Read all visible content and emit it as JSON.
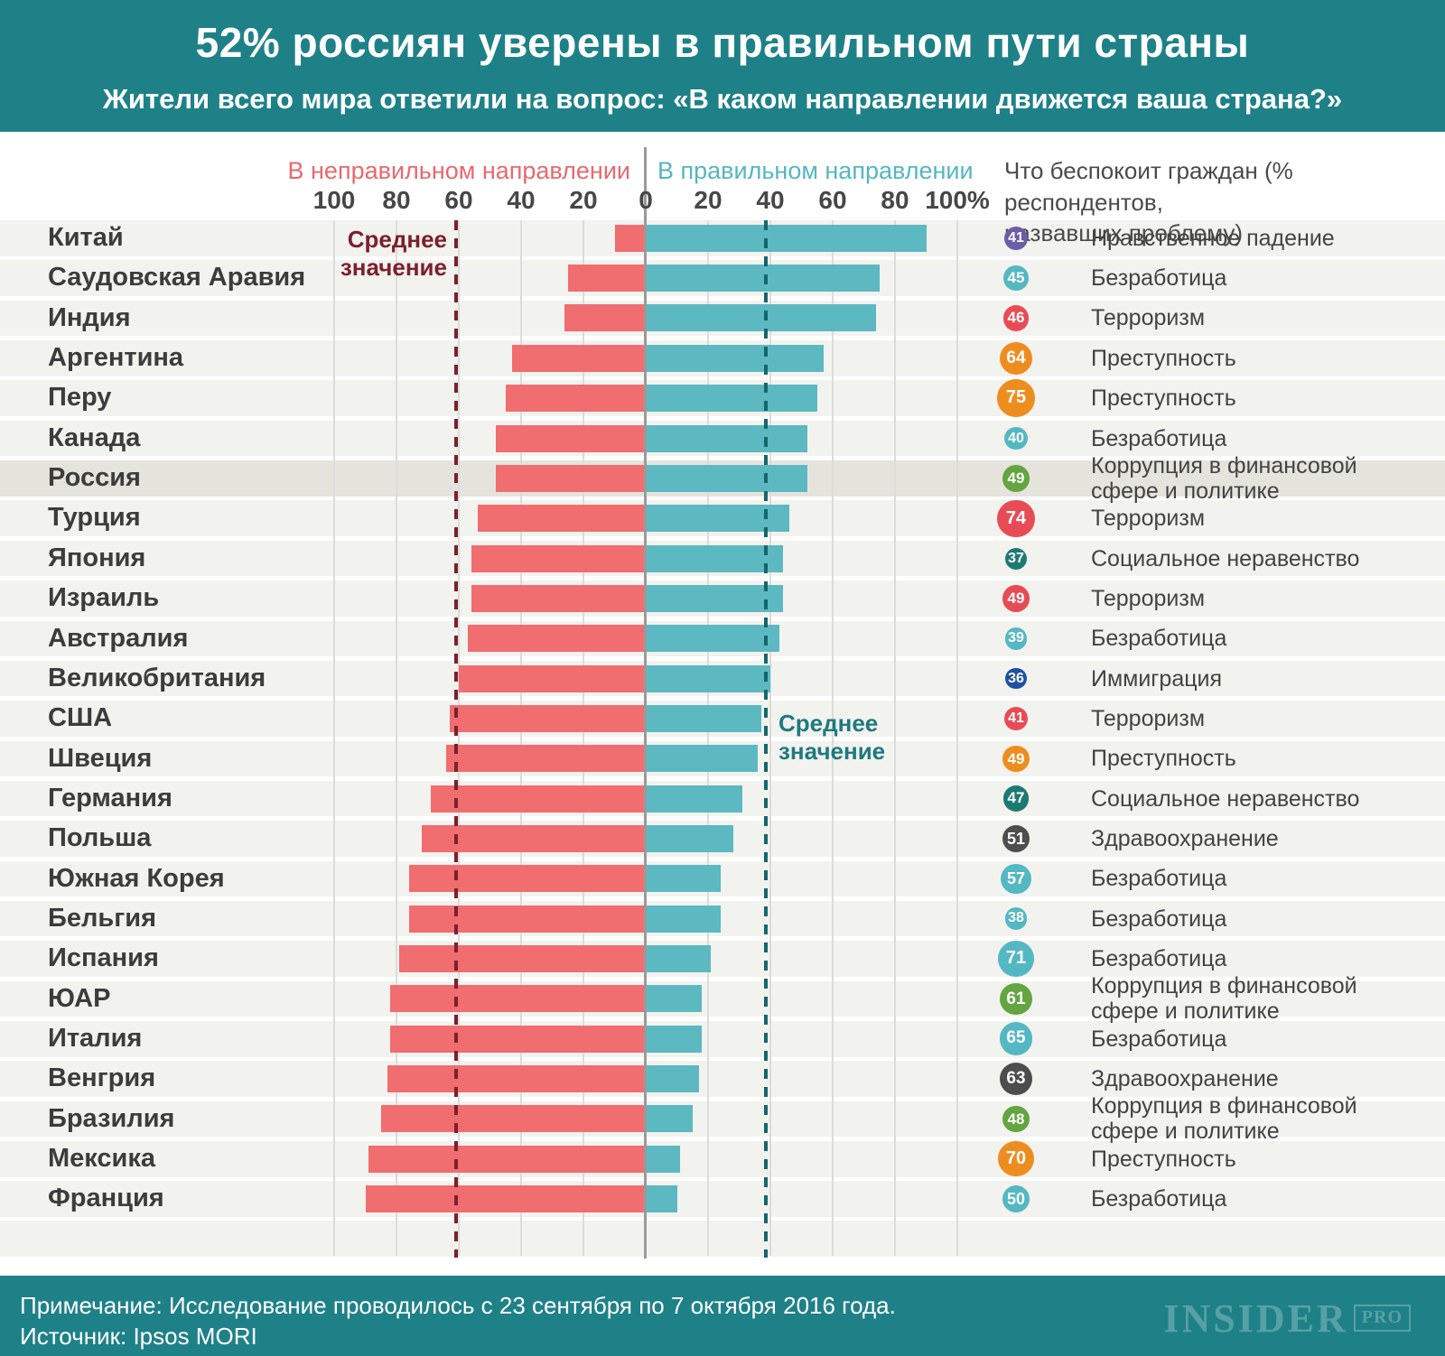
{
  "header": {
    "title": "52% россиян уверены в правильном пути страны",
    "subtitle": "Жители всего мира ответили на вопрос: «В каком направлении движется ваша страна?»"
  },
  "legend": {
    "wrong_label": "В неправильном направлении",
    "right_label": "В правильном направлении"
  },
  "axis": {
    "tick_labels": [
      "100",
      "80",
      "60",
      "40",
      "20",
      "0",
      "20",
      "40",
      "60",
      "80",
      "100%"
    ]
  },
  "right_column_header": "Что беспокоит граждан (% респондентов,\nназвавших проблему)",
  "avg_label_wrong": "Среднее\nзначение",
  "avg_label_right": "Среднее\nзначение",
  "chart_data": {
    "type": "bar",
    "orientation": "horizontal-diverging",
    "title": "52% россиян уверены в правильном пути страны",
    "unit": "%",
    "axis_range": [
      0,
      100
    ],
    "grid": true,
    "categories": [
      "Китай",
      "Саудовская Аравия",
      "Индия",
      "Аргентина",
      "Перу",
      "Канада",
      "Россия",
      "Турция",
      "Япония",
      "Израиль",
      "Австралия",
      "Великобритания",
      "США",
      "Швеция",
      "Германия",
      "Польша",
      "Южная Корея",
      "Бельгия",
      "Испания",
      "ЮАР",
      "Италия",
      "Венгрия",
      "Бразилия",
      "Мексика",
      "Франция"
    ],
    "series": [
      {
        "name": "В неправильном направлении",
        "color": "#f06d70",
        "values": [
          10,
          25,
          26,
          43,
          45,
          48,
          48,
          54,
          56,
          56,
          57,
          60,
          63,
          64,
          69,
          72,
          76,
          76,
          79,
          82,
          82,
          83,
          85,
          89,
          90
        ]
      },
      {
        "name": "В правильном направлении",
        "color": "#5cb9c2",
        "values": [
          90,
          75,
          74,
          57,
          55,
          52,
          52,
          46,
          44,
          44,
          43,
          40,
          37,
          36,
          31,
          28,
          24,
          24,
          21,
          18,
          18,
          17,
          15,
          11,
          10
        ]
      }
    ],
    "averages": {
      "wrong": 61,
      "right": 38.5
    },
    "highlight_category": "Россия",
    "concerns": [
      {
        "value": 41,
        "label": "Нравственное падение",
        "color": "#6b5ea6"
      },
      {
        "value": 45,
        "label": "Безработица",
        "color": "#54b8c3"
      },
      {
        "value": 46,
        "label": "Терроризм",
        "color": "#e74c56"
      },
      {
        "value": 64,
        "label": "Преступность",
        "color": "#ee8d1f"
      },
      {
        "value": 75,
        "label": "Преступность",
        "color": "#ee8d1f"
      },
      {
        "value": 40,
        "label": "Безработица",
        "color": "#54b8c3"
      },
      {
        "value": 49,
        "label": "Коррупция в финансовой сфере и политике",
        "color": "#64a441"
      },
      {
        "value": 74,
        "label": "Терроризм",
        "color": "#e74c56"
      },
      {
        "value": 37,
        "label": "Социальное неравенство",
        "color": "#1d7a72"
      },
      {
        "value": 49,
        "label": "Терроризм",
        "color": "#e74c56"
      },
      {
        "value": 39,
        "label": "Безработица",
        "color": "#54b8c3"
      },
      {
        "value": 36,
        "label": "Иммиграция",
        "color": "#1f50a4"
      },
      {
        "value": 41,
        "label": "Терроризм",
        "color": "#e74c56"
      },
      {
        "value": 49,
        "label": "Преступность",
        "color": "#ee8d1f"
      },
      {
        "value": 47,
        "label": "Социальное неравенство",
        "color": "#1d7a72"
      },
      {
        "value": 51,
        "label": "Здравоохранение",
        "color": "#4d4d4d"
      },
      {
        "value": 57,
        "label": "Безработица",
        "color": "#54b8c3"
      },
      {
        "value": 38,
        "label": "Безработица",
        "color": "#54b8c3"
      },
      {
        "value": 71,
        "label": "Безработица",
        "color": "#54b8c3"
      },
      {
        "value": 61,
        "label": "Коррупция в финансовой сфере и политике",
        "color": "#64a441"
      },
      {
        "value": 65,
        "label": "Безработица",
        "color": "#54b8c3"
      },
      {
        "value": 63,
        "label": "Здравоохранение",
        "color": "#4d4d4d"
      },
      {
        "value": 48,
        "label": "Коррупция в финансовой сфере и политике",
        "color": "#64a441"
      },
      {
        "value": 70,
        "label": "Преступность",
        "color": "#ee8d1f"
      },
      {
        "value": 50,
        "label": "Безработица",
        "color": "#54b8c3"
      }
    ]
  },
  "colors": {
    "header_bg": "#1f8188",
    "stripe": "#f2f2ef",
    "stripe_highlight": "#e4e4dd",
    "bar_wrong": "#f06d70",
    "bar_right": "#5cb9c2",
    "legend_wrong": "#e8696e",
    "legend_right": "#56b6c0",
    "avg_wrong_line": "#7c202d",
    "avg_right_line": "#15666c",
    "zero_line": "#9a9a9a",
    "gridline": "#dcdcda"
  },
  "footer": {
    "note": "Примечание: Исследование проводилось с 23 сентября по 7 октября 2016 года.",
    "source": "Источник: Ipsos MORI",
    "brand": "INSIDER",
    "brand_suffix": "PRO"
  }
}
